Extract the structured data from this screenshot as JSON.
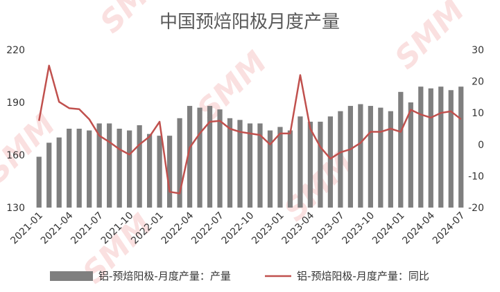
{
  "chart_data": {
    "type": "bar+line",
    "title": "中国预焙阳极月度产量",
    "categories": [
      "2021-01",
      "2021-02",
      "2021-03",
      "2021-04",
      "2021-05",
      "2021-06",
      "2021-07",
      "2021-08",
      "2021-09",
      "2021-10",
      "2021-11",
      "2021-12",
      "2022-01",
      "2022-02",
      "2022-03",
      "2022-04",
      "2022-05",
      "2022-06",
      "2022-07",
      "2022-08",
      "2022-09",
      "2022-10",
      "2022-11",
      "2022-12",
      "2023-01",
      "2023-02",
      "2023-03",
      "2023-04",
      "2023-05",
      "2023-06",
      "2023-07",
      "2023-08",
      "2023-09",
      "2023-10",
      "2023-11",
      "2023-12",
      "2024-01",
      "2024-02",
      "2024-03",
      "2024-04",
      "2024-05",
      "2024-06",
      "2024-07"
    ],
    "x_tick_labels": [
      "2021-01",
      "2021-04",
      "2021-07",
      "2021-10",
      "2022-01",
      "2022-04",
      "2022-07",
      "2022-10",
      "2023-01",
      "2023-04",
      "2023-07",
      "2023-10",
      "2024-01",
      "2024-04",
      "2024-07"
    ],
    "left_axis": {
      "ylim": [
        130,
        220
      ],
      "ticks": [
        130,
        160,
        190,
        220
      ]
    },
    "right_axis": {
      "ylim": [
        -20,
        30
      ],
      "ticks": [
        -20,
        -10,
        0,
        10,
        20,
        30
      ]
    },
    "series": [
      {
        "name": "铝-预焙阳极-月度产量：产量",
        "type": "bar",
        "axis": "left",
        "color": "#7f7f7f",
        "values": [
          159,
          167,
          170,
          175,
          175,
          174,
          178,
          178,
          175,
          174,
          177,
          172,
          171,
          171,
          181,
          188,
          187,
          188,
          186,
          181,
          180,
          178,
          178,
          174,
          176,
          174,
          182,
          179,
          179,
          182,
          185,
          188,
          189,
          188,
          187,
          185,
          196,
          190,
          199,
          198,
          199,
          197,
          199
        ]
      },
      {
        "name": "铝-预焙阳极-月度产量：同比",
        "type": "line",
        "axis": "right",
        "color": "#c0504d",
        "values": [
          7.5,
          25,
          13.5,
          11.5,
          11.2,
          8,
          2.8,
          0.8,
          -1.5,
          -3.2,
          0,
          2.5,
          7.2,
          -15,
          -15.5,
          -1,
          3.5,
          7.2,
          7.5,
          5,
          4,
          3.5,
          3,
          0,
          3.5,
          3.5,
          22,
          5,
          -0.8,
          -4.5,
          -2.5,
          -1.5,
          0.5,
          4,
          4,
          5,
          4,
          11,
          9.5,
          8.5,
          10,
          10.5,
          8
        ]
      }
    ]
  }
}
